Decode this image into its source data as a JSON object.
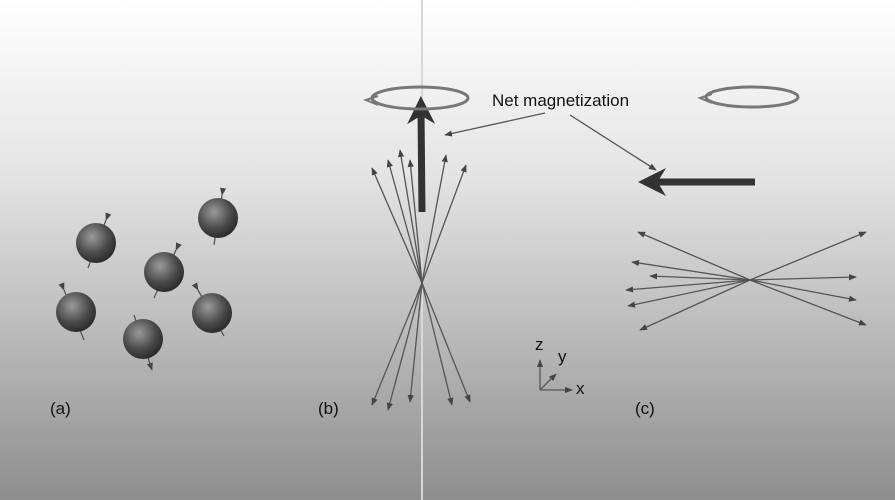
{
  "annotation": "Net magnetization",
  "panels": [
    {
      "label": "(a)"
    },
    {
      "label": "(b)"
    },
    {
      "label": "(c)"
    }
  ],
  "axes": {
    "z": "z",
    "y": "y",
    "x": "x"
  }
}
